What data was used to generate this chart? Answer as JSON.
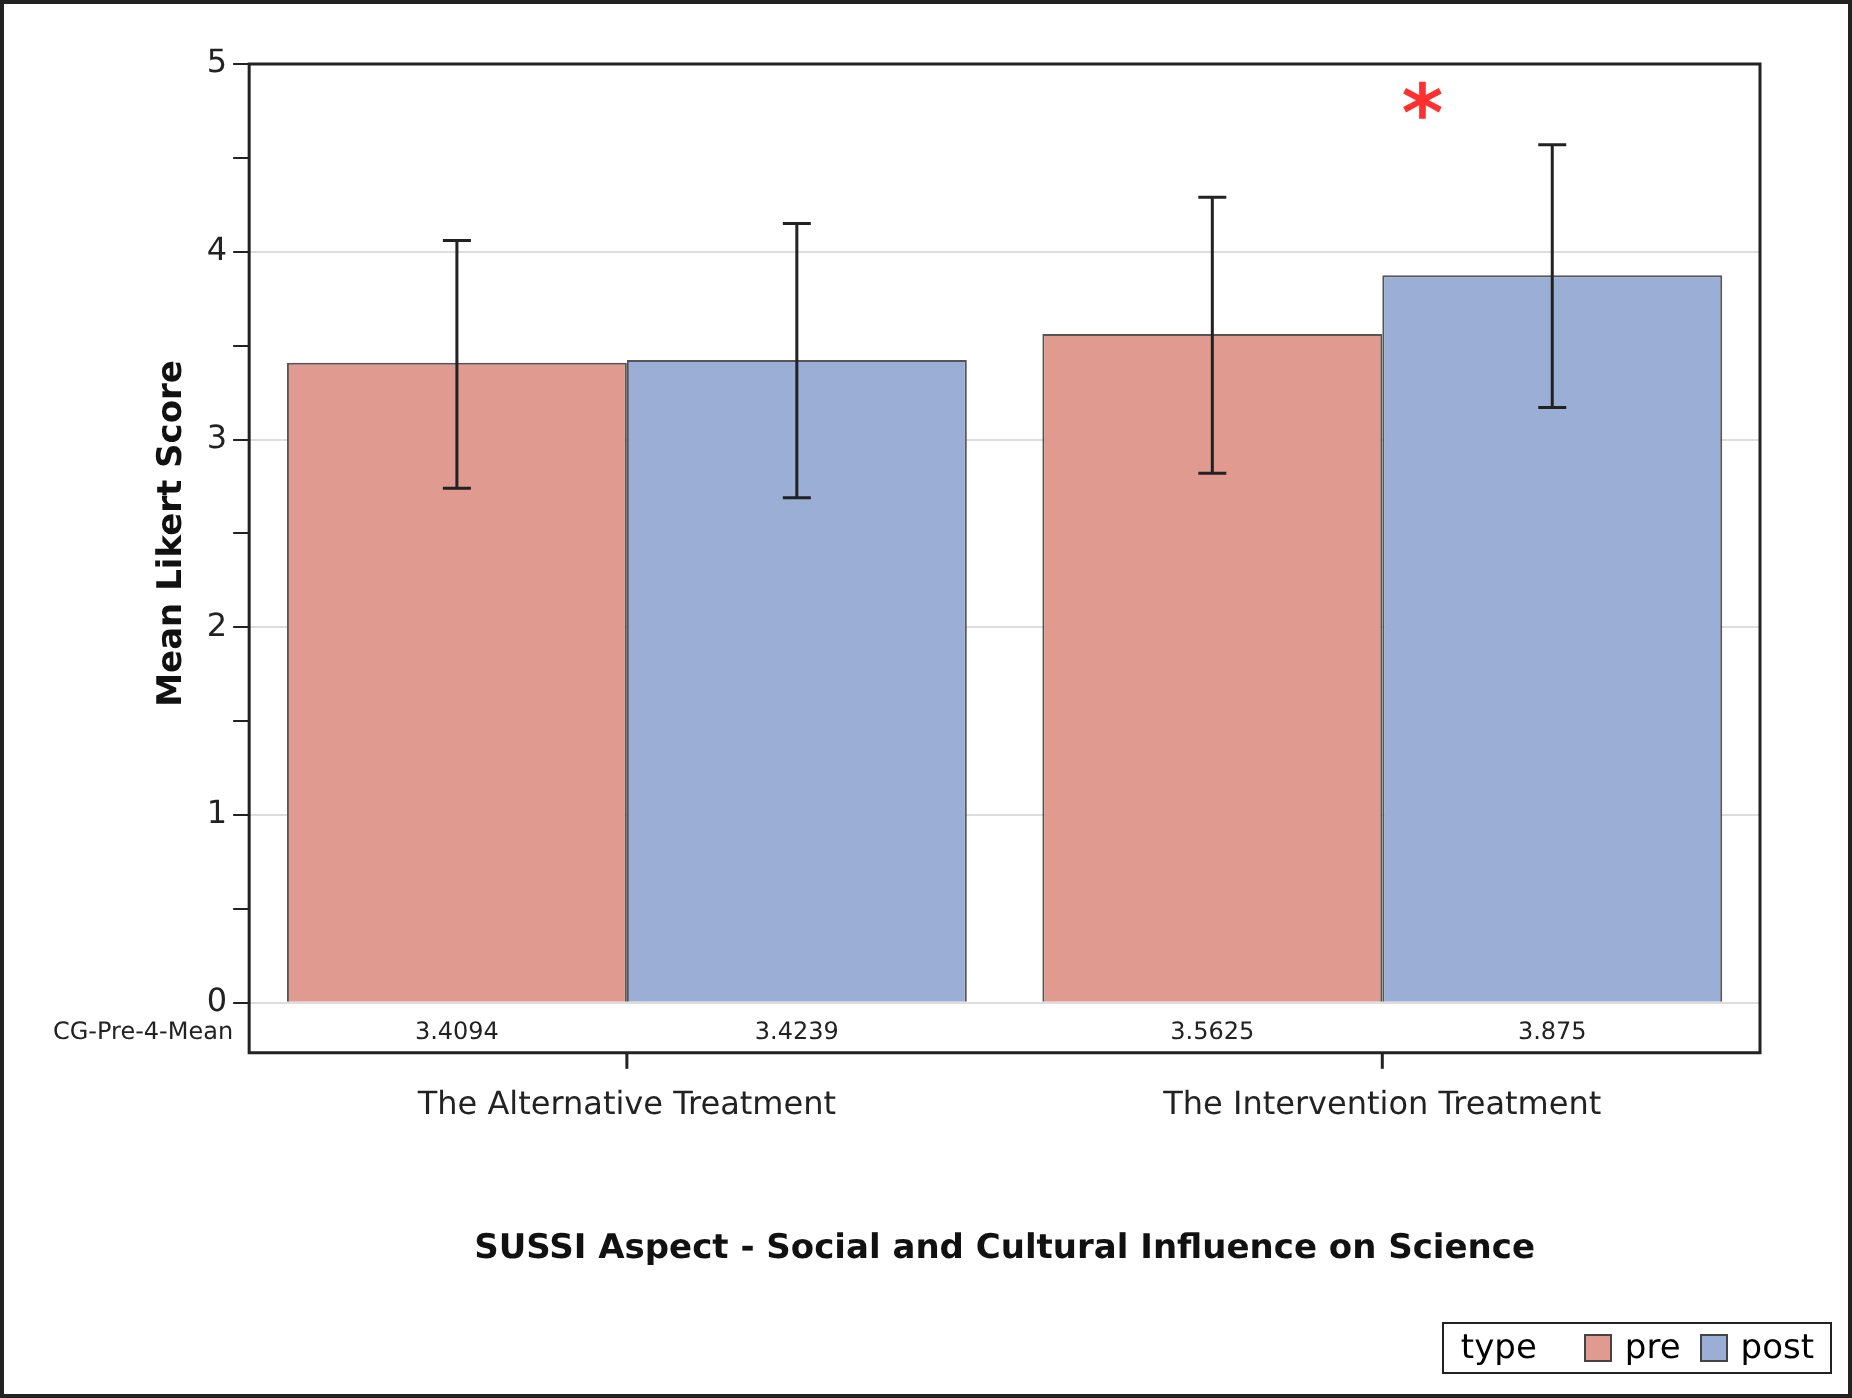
{
  "chart_data": {
    "type": "bar",
    "xlabel": "SUSSI Aspect - Social and Cultural Influence on Science",
    "ylabel": "Mean Likert Score",
    "legend_title": "type",
    "categories": [
      "The Alternative Treatment",
      "The Intervention Treatment"
    ],
    "series": [
      {
        "name": "pre",
        "color": "#e09a90",
        "values": [
          3.4094,
          3.5625
        ],
        "errors": [
          [
            2.74,
            4.06
          ],
          [
            2.82,
            4.29
          ]
        ]
      },
      {
        "name": "post",
        "color": "#9aaed6",
        "values": [
          3.4239,
          3.875
        ],
        "errors": [
          [
            2.69,
            4.15
          ],
          [
            3.17,
            4.57
          ]
        ]
      }
    ],
    "ylim": [
      0,
      5
    ],
    "yticks": [
      0,
      {
        "value": 0.5,
        "label": null
      },
      1,
      {
        "value": 1.5,
        "label": null
      },
      2,
      {
        "value": 2.5,
        "label": null
      },
      3,
      {
        "value": 3.5,
        "label": null
      },
      4,
      {
        "value": 4.5,
        "label": null
      },
      5
    ],
    "grid": "y",
    "legend": "bottom right",
    "data_labels": true,
    "annotations": [
      "CG-Pre-4-Mean",
      "*"
    ]
  }
}
